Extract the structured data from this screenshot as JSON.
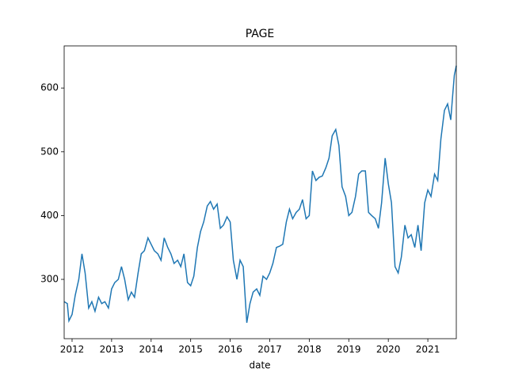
{
  "chart_data": {
    "type": "line",
    "title": "PAGE",
    "xlabel": "date",
    "x": [
      2011.8,
      2011.88,
      2011.92,
      2012.0,
      2012.08,
      2012.17,
      2012.25,
      2012.33,
      2012.42,
      2012.5,
      2012.58,
      2012.67,
      2012.75,
      2012.83,
      2012.92,
      2013.0,
      2013.08,
      2013.17,
      2013.25,
      2013.33,
      2013.42,
      2013.5,
      2013.58,
      2013.67,
      2013.75,
      2013.83,
      2013.92,
      2014.0,
      2014.08,
      2014.17,
      2014.25,
      2014.33,
      2014.42,
      2014.5,
      2014.58,
      2014.67,
      2014.75,
      2014.83,
      2014.92,
      2015.0,
      2015.08,
      2015.17,
      2015.25,
      2015.33,
      2015.42,
      2015.5,
      2015.58,
      2015.67,
      2015.75,
      2015.83,
      2015.92,
      2016.0,
      2016.08,
      2016.17,
      2016.25,
      2016.33,
      2016.42,
      2016.5,
      2016.58,
      2016.67,
      2016.75,
      2016.83,
      2016.92,
      2017.0,
      2017.08,
      2017.17,
      2017.25,
      2017.33,
      2017.42,
      2017.5,
      2017.58,
      2017.67,
      2017.75,
      2017.83,
      2017.92,
      2018.0,
      2018.08,
      2018.17,
      2018.25,
      2018.33,
      2018.42,
      2018.5,
      2018.58,
      2018.67,
      2018.75,
      2018.83,
      2018.92,
      2019.0,
      2019.08,
      2019.17,
      2019.25,
      2019.33,
      2019.42,
      2019.5,
      2019.58,
      2019.67,
      2019.75,
      2019.83,
      2019.92,
      2020.0,
      2020.08,
      2020.17,
      2020.25,
      2020.33,
      2020.42,
      2020.5,
      2020.58,
      2020.67,
      2020.75,
      2020.83,
      2020.92,
      2021.0,
      2021.08,
      2021.17,
      2021.25,
      2021.33,
      2021.42,
      2021.5,
      2021.58,
      2021.63,
      2021.67,
      2021.72
    ],
    "series": [
      {
        "name": "PAGE",
        "color": "#1f77b4",
        "values": [
          265,
          262,
          235,
          245,
          275,
          300,
          340,
          310,
          255,
          265,
          250,
          272,
          262,
          265,
          255,
          285,
          295,
          300,
          320,
          300,
          268,
          280,
          272,
          310,
          340,
          345,
          365,
          355,
          345,
          340,
          330,
          365,
          350,
          340,
          325,
          330,
          320,
          340,
          295,
          290,
          305,
          350,
          375,
          390,
          415,
          422,
          410,
          418,
          380,
          385,
          398,
          390,
          330,
          300,
          330,
          320,
          232,
          262,
          280,
          285,
          275,
          305,
          300,
          310,
          325,
          350,
          352,
          355,
          390,
          410,
          395,
          405,
          410,
          425,
          395,
          400,
          470,
          455,
          460,
          462,
          475,
          490,
          525,
          535,
          510,
          445,
          430,
          400,
          405,
          430,
          465,
          470,
          470,
          405,
          400,
          395,
          380,
          420,
          490,
          450,
          420,
          320,
          310,
          335,
          385,
          365,
          370,
          350,
          385,
          345,
          420,
          440,
          430,
          465,
          455,
          520,
          565,
          575,
          550,
          590,
          620,
          635
        ]
      }
    ],
    "xlim": [
      2011.8,
      2021.72
    ],
    "ylim": [
      207,
      666
    ],
    "xticks": [
      2012,
      2013,
      2014,
      2015,
      2016,
      2017,
      2018,
      2019,
      2020,
      2021
    ],
    "yticks": [
      300,
      400,
      500,
      600
    ]
  }
}
